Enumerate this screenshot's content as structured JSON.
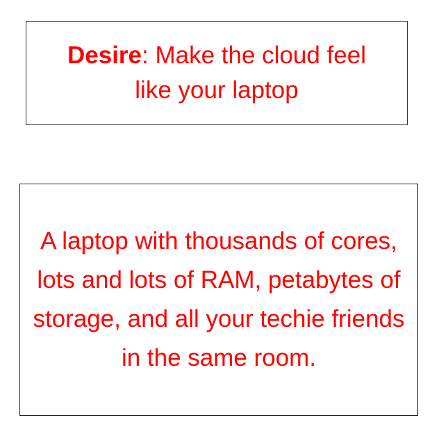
{
  "box1": {
    "label": "Desire",
    "text": ": Make the cloud feel like your laptop"
  },
  "box2": {
    "text": "A laptop with thousands of cores, lots and lots of RAM, petabytes of storage, and all your techie friends in the same room."
  },
  "colors": {
    "text": "#ff0000",
    "border": "#222222",
    "background": "#ffffff"
  }
}
